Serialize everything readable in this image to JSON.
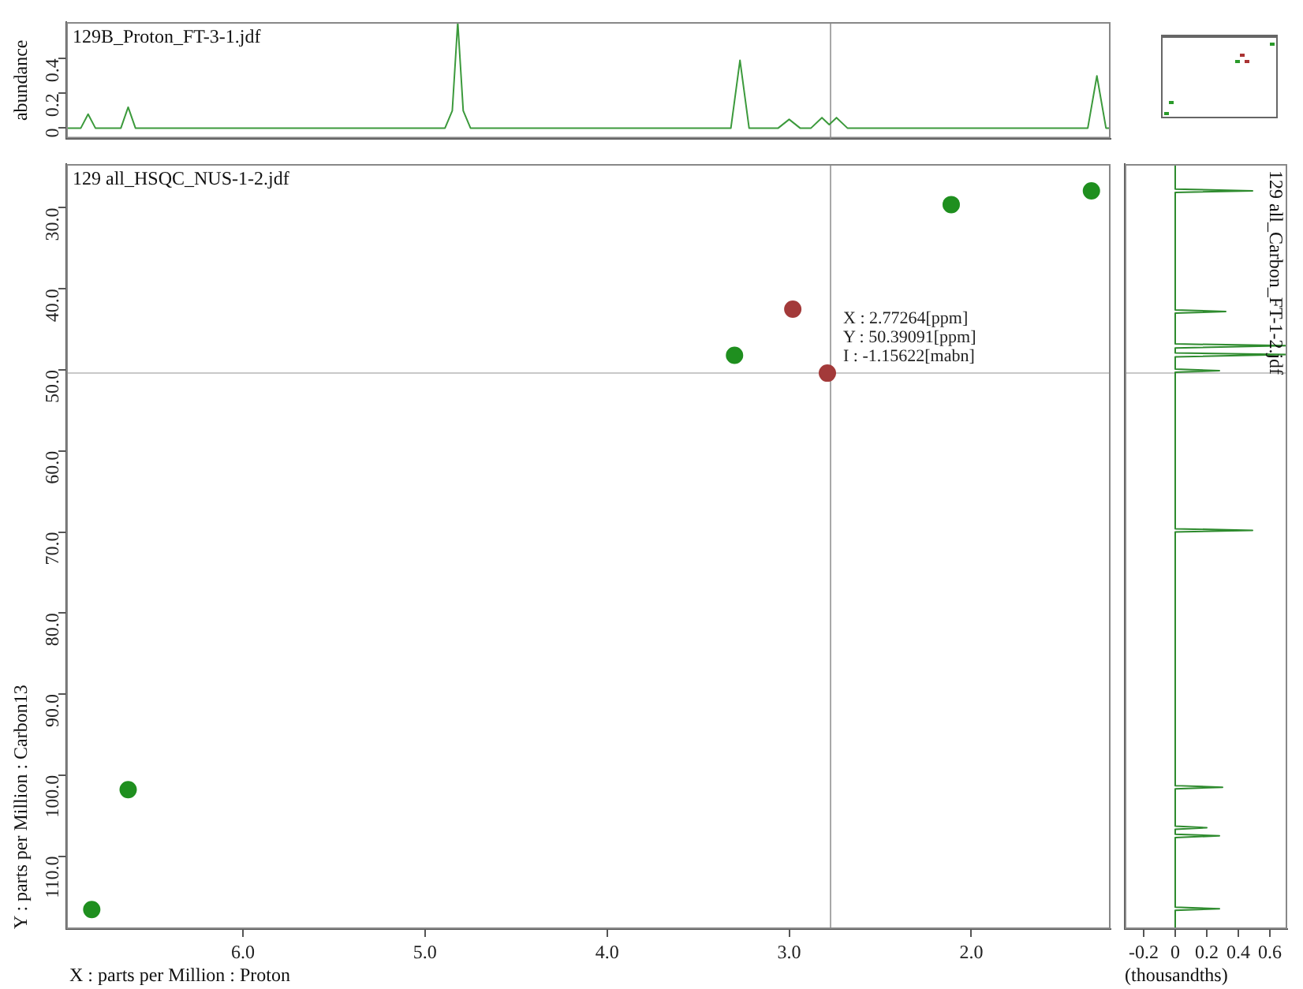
{
  "chart_data": [
    {
      "type": "line",
      "title": "129B_Proton_FT-3-1.jdf",
      "ylabel": "abundance",
      "x": [
        6.97,
        6.89,
        6.85,
        6.81,
        6.67,
        6.63,
        6.59,
        4.89,
        4.85,
        4.82,
        4.79,
        4.75,
        3.32,
        3.27,
        3.22,
        3.06,
        3.0,
        2.94,
        2.88,
        2.82,
        2.78,
        2.74,
        2.68,
        1.36,
        1.31,
        1.26,
        1.235
      ],
      "values": [
        0,
        0,
        0.08,
        0,
        0,
        0.12,
        0,
        0,
        0.1,
        0.61,
        0.1,
        0,
        0,
        0.39,
        0,
        0,
        0.05,
        0,
        0,
        0.06,
        0.02,
        0.06,
        0,
        0,
        0.3,
        0,
        0
      ],
      "color": "#3c9a3c",
      "xlim": [
        6.97,
        1.235
      ],
      "ylim": [
        -0.06,
        0.61
      ],
      "yticks": [
        0,
        0.2,
        0.4
      ],
      "tick_labels": "y",
      "grid": false,
      "legend": false,
      "marker": "none",
      "ref_lines": [
        {
          "axis": "x",
          "value": 2.77264,
          "color": "#a8a8a8"
        }
      ]
    },
    {
      "type": "scatter",
      "title": "129 all_HSQC_NUS-1-2.jdf",
      "xlabel": "X : parts per Million : Proton",
      "ylabel": "Y : parts per Million : Carbon13",
      "series": [
        {
          "color": "#1f8f1f",
          "x": [
            6.83,
            6.63,
            3.3,
            2.11,
            1.34
          ],
          "values": [
            116.6,
            101.8,
            48.2,
            29.6,
            27.9
          ]
        },
        {
          "color": "#a33a3a",
          "x": [
            2.98,
            2.79
          ],
          "values": [
            42.5,
            50.4
          ]
        }
      ],
      "xlim": [
        6.97,
        1.235
      ],
      "xticks": [
        {
          "value": 6,
          "label": "6.0"
        },
        {
          "value": 5,
          "label": "5.0"
        },
        {
          "value": 4,
          "label": "4.0"
        },
        {
          "value": 3,
          "label": "3.0"
        },
        {
          "value": 2,
          "label": "2.0"
        }
      ],
      "ylim": [
        119,
        24.6
      ],
      "yticks": [
        {
          "value": 30,
          "label": "30.0"
        },
        {
          "value": 40,
          "label": "40.0"
        },
        {
          "value": 50,
          "label": "50.0"
        },
        {
          "value": 60,
          "label": "60.0"
        },
        {
          "value": 70,
          "label": "70.0"
        },
        {
          "value": 80,
          "label": "80.0"
        },
        {
          "value": 90,
          "label": "90.0"
        },
        {
          "value": 100,
          "label": "100.0"
        },
        {
          "value": 110,
          "label": "110.0"
        }
      ],
      "marker": "circle",
      "grid": false,
      "legend": false,
      "ref_lines": [
        {
          "axis": "x",
          "value": 2.77264,
          "color": "#a8a8a8"
        },
        {
          "axis": "y",
          "value": 50.39091,
          "color": "#c8c8c8"
        }
      ],
      "annotations": [
        "X : 2.77264[ppm]",
        "Y : 50.39091[ppm]",
        "I : -1.15622[mabn]"
      ]
    },
    {
      "type": "line",
      "title": "129 all_Carbon_FT-1-2.jdf",
      "xlabel": "(thousandths)",
      "x": [
        0,
        0,
        0.49,
        0,
        0,
        0.32,
        0,
        0,
        0.71,
        0,
        0,
        0.71,
        0,
        0,
        0.28,
        0,
        0,
        0.49,
        0,
        0,
        0.3,
        0,
        0,
        0.2,
        0,
        0,
        0.28,
        0,
        0,
        0.28,
        0,
        0
      ],
      "values": [
        24.6,
        27.7,
        27.9,
        28.1,
        42.6,
        42.8,
        43.0,
        46.8,
        47.0,
        47.3,
        47.9,
        48.1,
        48.4,
        49.9,
        50.1,
        50.3,
        69.6,
        69.8,
        70.0,
        101.3,
        101.5,
        101.7,
        106.3,
        106.5,
        106.7,
        107.3,
        107.5,
        107.7,
        116.3,
        116.5,
        116.7,
        119
      ],
      "color": "#2e8b2e",
      "xlim": [
        -0.32,
        0.71
      ],
      "xticks": [
        {
          "value": -0.2,
          "label": "-0.2"
        },
        0,
        0.2,
        0.4,
        0.6
      ],
      "ylim": [
        119,
        24.6
      ],
      "tick_labels": "x",
      "grid": false,
      "legend": false,
      "marker": "none",
      "ref_lines": [
        {
          "axis": "y",
          "value": 50.39091,
          "color": "#c8c8c8"
        }
      ]
    }
  ]
}
